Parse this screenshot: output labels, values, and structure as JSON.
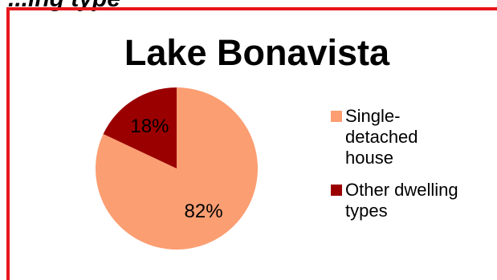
{
  "page": {
    "caption": "...ing type"
  },
  "colors": {
    "frame": "#e8161b",
    "single_detached": "#fb9e72",
    "other": "#9b0000"
  },
  "chart_data": {
    "type": "pie",
    "title": "Lake Bonavista",
    "categories": [
      "Single-detached house",
      "Other dwelling types"
    ],
    "values": [
      82,
      18
    ],
    "data_labels": [
      "82%",
      "18%"
    ],
    "colors": [
      "#fb9e72",
      "#9b0000"
    ],
    "legend_position": "right",
    "start_angle_deg": 0,
    "direction": "clockwise"
  },
  "legend": {
    "items": [
      {
        "label": "Single-detached house"
      },
      {
        "label": "Other dwelling types"
      }
    ]
  }
}
